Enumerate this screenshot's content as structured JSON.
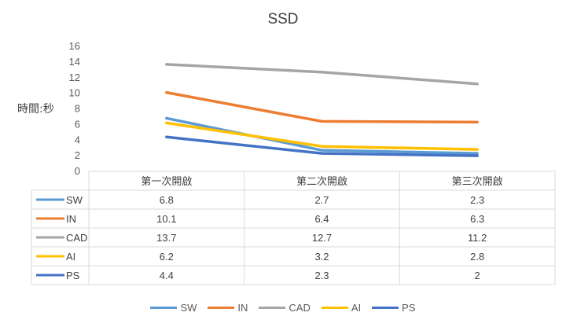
{
  "chart_data": {
    "type": "line",
    "title": "SSD",
    "ylabel": "時間:秒",
    "xlabel": "",
    "ylim": [
      0,
      16
    ],
    "yticks": [
      0,
      2,
      4,
      6,
      8,
      10,
      12,
      14,
      16
    ],
    "categories": [
      "第一次開啟",
      "第二次開啟",
      "第三次開啟"
    ],
    "series": [
      {
        "name": "SW",
        "color": "#5B9BD5",
        "values": [
          6.8,
          2.7,
          2.3
        ]
      },
      {
        "name": "IN",
        "color": "#ED7D31",
        "values": [
          10.1,
          6.4,
          6.3
        ]
      },
      {
        "name": "CAD",
        "color": "#A5A5A5",
        "values": [
          13.7,
          12.7,
          11.2
        ]
      },
      {
        "name": "AI",
        "color": "#FFC000",
        "values": [
          6.2,
          3.2,
          2.8
        ]
      },
      {
        "name": "PS",
        "color": "#4472C4",
        "values": [
          4.4,
          2.3,
          2
        ]
      }
    ],
    "grid": false,
    "legend_position": "bottom",
    "data_table": true
  }
}
